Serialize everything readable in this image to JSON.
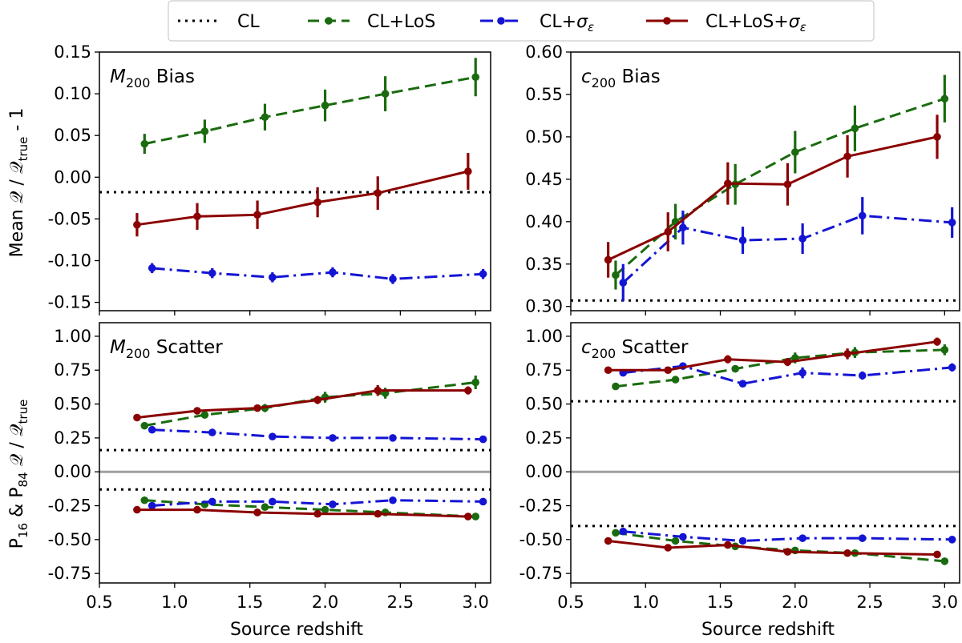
{
  "legend": {
    "entries": [
      {
        "label": "CL",
        "series_key": "CL"
      },
      {
        "label": "CL+LoS",
        "series_key": "CL+LoS"
      },
      {
        "label": "CL+σε",
        "series_key": "CL+sigma"
      },
      {
        "label": "CL+LoS+σε",
        "series_key": "CL+LoS+sigma"
      }
    ]
  },
  "styles": {
    "CL": {
      "color": "#000000",
      "dash": "3,6"
    },
    "CL+LoS": {
      "color": "#1a6b0f",
      "dash": "14,7"
    },
    "CL+sigma": {
      "color": "#1414d4",
      "dash": "16,6,3,6"
    },
    "CL+LoS+sigma": {
      "color": "#8b0000",
      "dash": ""
    },
    "zero_line": "#a0a0a0"
  },
  "axes": {
    "xlabel": "Source redshift",
    "ylabel_top": "Mean 𝒬 / 𝒬true - 1",
    "ylabel_bottom": "P16 & P84 𝒬 / 𝒬true"
  },
  "chart_data": [
    {
      "type": "line",
      "title": "M200 Bias",
      "title_main": "M",
      "title_sub": "200",
      "title_rest": " Bias",
      "xlim": [
        0.5,
        3.1
      ],
      "ylim": [
        -0.16,
        0.15
      ],
      "xticks": [
        0.5,
        1.0,
        1.5,
        2.0,
        2.5,
        3.0
      ],
      "xtick_labels": [
        "0.5",
        "1.0",
        "1.5",
        "2.0",
        "2.5",
        "3.0"
      ],
      "yticks": [
        -0.15,
        -0.1,
        -0.05,
        0.0,
        0.05,
        0.1,
        0.15
      ],
      "ytick_labels": [
        "-0.15",
        "-0.10",
        "-0.05",
        "0.00",
        "0.05",
        "0.10",
        "0.15"
      ],
      "hlines": [
        {
          "series": "CL",
          "y": -0.018
        }
      ],
      "series": [
        {
          "name": "CL+LoS",
          "x": [
            0.8,
            1.2,
            1.6,
            2.0,
            2.4,
            3.0
          ],
          "y": [
            0.04,
            0.055,
            0.072,
            0.086,
            0.1,
            0.12
          ],
          "err": [
            0.012,
            0.014,
            0.016,
            0.019,
            0.021,
            0.023
          ]
        },
        {
          "name": "CL+sigma",
          "x": [
            0.85,
            1.25,
            1.65,
            2.05,
            2.45,
            3.05
          ],
          "y": [
            -0.109,
            -0.115,
            -0.12,
            -0.114,
            -0.122,
            -0.116
          ],
          "err": [
            0.006,
            0.006,
            0.006,
            0.006,
            0.006,
            0.006
          ]
        },
        {
          "name": "CL+LoS+sigma",
          "x": [
            0.75,
            1.15,
            1.55,
            1.95,
            2.35,
            2.95
          ],
          "y": [
            -0.057,
            -0.047,
            -0.045,
            -0.03,
            -0.019,
            0.007
          ],
          "err": [
            0.014,
            0.016,
            0.017,
            0.018,
            0.02,
            0.022
          ]
        }
      ]
    },
    {
      "type": "line",
      "title": "c200 Bias",
      "title_main": "c",
      "title_sub": "200",
      "title_rest": " Bias",
      "xlim": [
        0.5,
        3.1
      ],
      "ylim": [
        0.295,
        0.6
      ],
      "xticks": [
        0.5,
        1.0,
        1.5,
        2.0,
        2.5,
        3.0
      ],
      "xtick_labels": [
        "0.5",
        "1.0",
        "1.5",
        "2.0",
        "2.5",
        "3.0"
      ],
      "yticks": [
        0.3,
        0.35,
        0.4,
        0.45,
        0.5,
        0.55,
        0.6
      ],
      "ytick_labels": [
        "0.30",
        "0.35",
        "0.40",
        "0.45",
        "0.50",
        "0.55",
        "0.60"
      ],
      "hlines": [
        {
          "series": "CL",
          "y": 0.307
        }
      ],
      "series": [
        {
          "name": "CL+LoS",
          "x": [
            0.8,
            1.2,
            1.6,
            2.0,
            2.4,
            3.0
          ],
          "y": [
            0.337,
            0.4,
            0.444,
            0.482,
            0.51,
            0.545
          ],
          "err": [
            0.017,
            0.021,
            0.024,
            0.025,
            0.027,
            0.028
          ]
        },
        {
          "name": "CL+sigma",
          "x": [
            0.85,
            1.25,
            1.65,
            2.05,
            2.45,
            3.05
          ],
          "y": [
            0.328,
            0.393,
            0.378,
            0.38,
            0.407,
            0.399
          ],
          "err": [
            0.022,
            0.02,
            0.016,
            0.018,
            0.022,
            0.018
          ]
        },
        {
          "name": "CL+LoS+sigma",
          "x": [
            0.75,
            1.15,
            1.55,
            1.95,
            2.35,
            2.95
          ],
          "y": [
            0.355,
            0.388,
            0.445,
            0.444,
            0.477,
            0.5
          ],
          "err": [
            0.021,
            0.023,
            0.025,
            0.025,
            0.025,
            0.026
          ]
        }
      ]
    },
    {
      "type": "line",
      "title": "M200 Scatter",
      "title_main": "M",
      "title_sub": "200",
      "title_rest": " Scatter",
      "xlim": [
        0.5,
        3.1
      ],
      "ylim": [
        -0.82,
        1.1
      ],
      "xticks": [
        0.5,
        1.0,
        1.5,
        2.0,
        2.5,
        3.0
      ],
      "xtick_labels": [
        "0.5",
        "1.0",
        "1.5",
        "2.0",
        "2.5",
        "3.0"
      ],
      "yticks": [
        -0.75,
        -0.5,
        -0.25,
        0.0,
        0.25,
        0.5,
        0.75,
        1.0
      ],
      "ytick_labels": [
        "-0.75",
        "-0.50",
        "-0.25",
        "0.00",
        "0.25",
        "0.50",
        "0.75",
        "1.00"
      ],
      "zero_line": 0.0,
      "hlines": [
        {
          "series": "CL",
          "y": 0.16
        },
        {
          "series": "CL",
          "y": -0.13
        }
      ],
      "series": [
        {
          "name": "CL+LoS",
          "x": [
            0.8,
            1.2,
            1.6,
            2.0,
            2.4,
            3.0
          ],
          "y": [
            0.34,
            0.42,
            0.47,
            0.55,
            0.58,
            0.66
          ],
          "err": [
            0.02,
            0.02,
            0.03,
            0.04,
            0.04,
            0.05
          ]
        },
        {
          "name": "CL+sigma",
          "x": [
            0.85,
            1.25,
            1.65,
            2.05,
            2.45,
            3.05
          ],
          "y": [
            0.31,
            0.29,
            0.26,
            0.25,
            0.25,
            0.24
          ],
          "err": [
            0.01,
            0.01,
            0.01,
            0.01,
            0.01,
            0.01
          ]
        },
        {
          "name": "CL+LoS+sigma",
          "x": [
            0.75,
            1.15,
            1.55,
            1.95,
            2.35,
            2.95
          ],
          "y": [
            0.4,
            0.45,
            0.47,
            0.53,
            0.6,
            0.6
          ],
          "err": [
            0.01,
            0.02,
            0.02,
            0.03,
            0.04,
            0.03
          ]
        },
        {
          "name": "CL+LoS",
          "x": [
            0.8,
            1.2,
            1.6,
            2.0,
            2.4,
            3.0
          ],
          "y": [
            -0.21,
            -0.24,
            -0.26,
            -0.28,
            -0.3,
            -0.33
          ],
          "err": [
            0.01,
            0.01,
            0.01,
            0.01,
            0.01,
            0.01
          ]
        },
        {
          "name": "CL+sigma",
          "x": [
            0.85,
            1.25,
            1.65,
            2.05,
            2.45,
            3.05
          ],
          "y": [
            -0.25,
            -0.22,
            -0.22,
            -0.24,
            -0.21,
            -0.22
          ],
          "err": [
            0.01,
            0.01,
            0.01,
            0.01,
            0.01,
            0.01
          ]
        },
        {
          "name": "CL+LoS+sigma",
          "x": [
            0.75,
            1.15,
            1.55,
            1.95,
            2.35,
            2.95
          ],
          "y": [
            -0.28,
            -0.28,
            -0.3,
            -0.31,
            -0.31,
            -0.33
          ],
          "err": [
            0.01,
            0.01,
            0.01,
            0.01,
            0.01,
            0.01
          ]
        }
      ]
    },
    {
      "type": "line",
      "title": "c200 Scatter",
      "title_main": "c",
      "title_sub": "200",
      "title_rest": " Scatter",
      "xlim": [
        0.5,
        3.1
      ],
      "ylim": [
        -0.82,
        1.1
      ],
      "xticks": [
        0.5,
        1.0,
        1.5,
        2.0,
        2.5,
        3.0
      ],
      "xtick_labels": [
        "0.5",
        "1.0",
        "1.5",
        "2.0",
        "2.5",
        "3.0"
      ],
      "yticks": [
        -0.75,
        -0.5,
        -0.25,
        0.0,
        0.25,
        0.5,
        0.75,
        1.0
      ],
      "ytick_labels": [
        "-0.75",
        "-0.50",
        "-0.25",
        "0.00",
        "0.25",
        "0.50",
        "0.75",
        "1.00"
      ],
      "zero_line": 0.0,
      "hlines": [
        {
          "series": "CL",
          "y": 0.52
        },
        {
          "series": "CL",
          "y": -0.4
        }
      ],
      "series": [
        {
          "name": "CL+LoS",
          "x": [
            0.8,
            1.2,
            1.6,
            2.0,
            2.4,
            3.0
          ],
          "y": [
            0.63,
            0.68,
            0.76,
            0.84,
            0.88,
            0.9
          ],
          "err": [
            0.02,
            0.02,
            0.02,
            0.04,
            0.04,
            0.04
          ]
        },
        {
          "name": "CL+sigma",
          "x": [
            0.85,
            1.25,
            1.65,
            2.05,
            2.45,
            3.05
          ],
          "y": [
            0.73,
            0.78,
            0.65,
            0.73,
            0.71,
            0.77
          ],
          "err": [
            0.02,
            0.02,
            0.02,
            0.04,
            0.03,
            0.03
          ]
        },
        {
          "name": "CL+LoS+sigma",
          "x": [
            0.75,
            1.15,
            1.55,
            1.95,
            2.35,
            2.95
          ],
          "y": [
            0.75,
            0.75,
            0.83,
            0.81,
            0.87,
            0.96
          ],
          "err": [
            0.02,
            0.02,
            0.03,
            0.03,
            0.04,
            0.03
          ]
        },
        {
          "name": "CL+LoS",
          "x": [
            0.8,
            1.2,
            1.6,
            2.0,
            2.4,
            3.0
          ],
          "y": [
            -0.45,
            -0.51,
            -0.55,
            -0.58,
            -0.6,
            -0.66
          ],
          "err": [
            0.01,
            0.01,
            0.01,
            0.01,
            0.01,
            0.01
          ]
        },
        {
          "name": "CL+sigma",
          "x": [
            0.85,
            1.25,
            1.65,
            2.05,
            2.45,
            3.05
          ],
          "y": [
            -0.44,
            -0.48,
            -0.51,
            -0.49,
            -0.49,
            -0.5
          ],
          "err": [
            0.01,
            0.01,
            0.01,
            0.01,
            0.01,
            0.01
          ]
        },
        {
          "name": "CL+LoS+sigma",
          "x": [
            0.75,
            1.15,
            1.55,
            1.95,
            2.35,
            2.95
          ],
          "y": [
            -0.51,
            -0.56,
            -0.54,
            -0.59,
            -0.6,
            -0.61
          ],
          "err": [
            0.01,
            0.01,
            0.01,
            0.01,
            0.01,
            0.01
          ]
        }
      ]
    }
  ]
}
